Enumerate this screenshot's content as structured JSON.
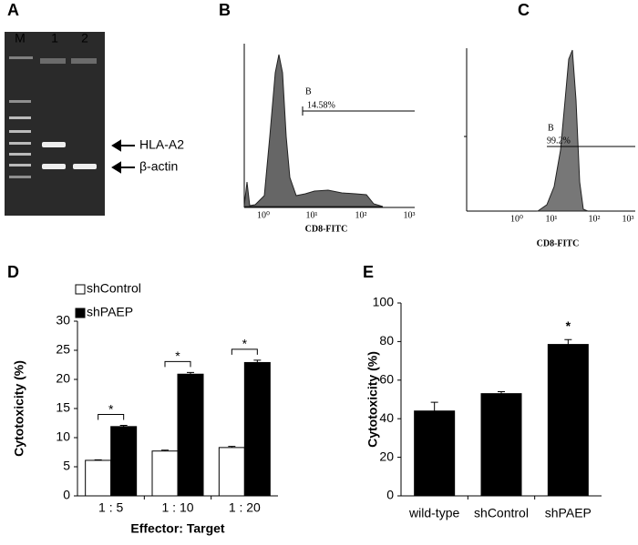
{
  "gel": {
    "label": "A",
    "lanes": [
      "M",
      "1",
      "2"
    ],
    "bands": [
      "HLA-A2",
      "β-actin"
    ]
  },
  "flow": [
    {
      "label": "B",
      "gate": "B",
      "percent": "14.58%",
      "xlabel": "CD8-FITC",
      "tick_labels": [
        "10⁰",
        "10¹",
        "10²",
        "10³"
      ]
    },
    {
      "label": "C",
      "gate": "B",
      "percent": "99.2%",
      "xlabel": "CD8-FITC",
      "tick_labels": [
        "10⁰",
        "10¹",
        "10²",
        "10³"
      ]
    }
  ],
  "chart_data": [
    {
      "type": "bar",
      "label": "D",
      "xlabel": "Effector: Target",
      "ylabel": "Cytotoxicity (%)",
      "categories": [
        "1 : 5",
        "1 : 10",
        "1 : 20"
      ],
      "series": [
        {
          "name": "shControl",
          "color": "#ffffff",
          "values": [
            6.1,
            7.7,
            8.3
          ],
          "errors": [
            0.1,
            0.15,
            0.2
          ]
        },
        {
          "name": "shPAEP",
          "color": "#000000",
          "values": [
            11.9,
            20.9,
            22.9
          ],
          "errors": [
            0.2,
            0.3,
            0.4
          ]
        }
      ],
      "significance": [
        "*",
        "*",
        "*"
      ],
      "significance_bracket": true,
      "ylim": [
        0,
        30
      ],
      "yticks": [
        0,
        5,
        10,
        15,
        20,
        25,
        30
      ],
      "legend": "top-left"
    },
    {
      "type": "bar",
      "label": "E",
      "ylabel": "Cytotoxicity (%)",
      "categories": [
        "wild-type",
        "shControl",
        "shPAEP"
      ],
      "values": [
        44,
        53,
        78.5
      ],
      "errors": [
        4.5,
        1,
        2.5
      ],
      "color": "#000000",
      "significance": [
        null,
        null,
        "*"
      ],
      "significance_bracket": false,
      "ylim": [
        0,
        100
      ],
      "yticks": [
        0,
        20,
        40,
        60,
        80,
        100
      ]
    }
  ]
}
